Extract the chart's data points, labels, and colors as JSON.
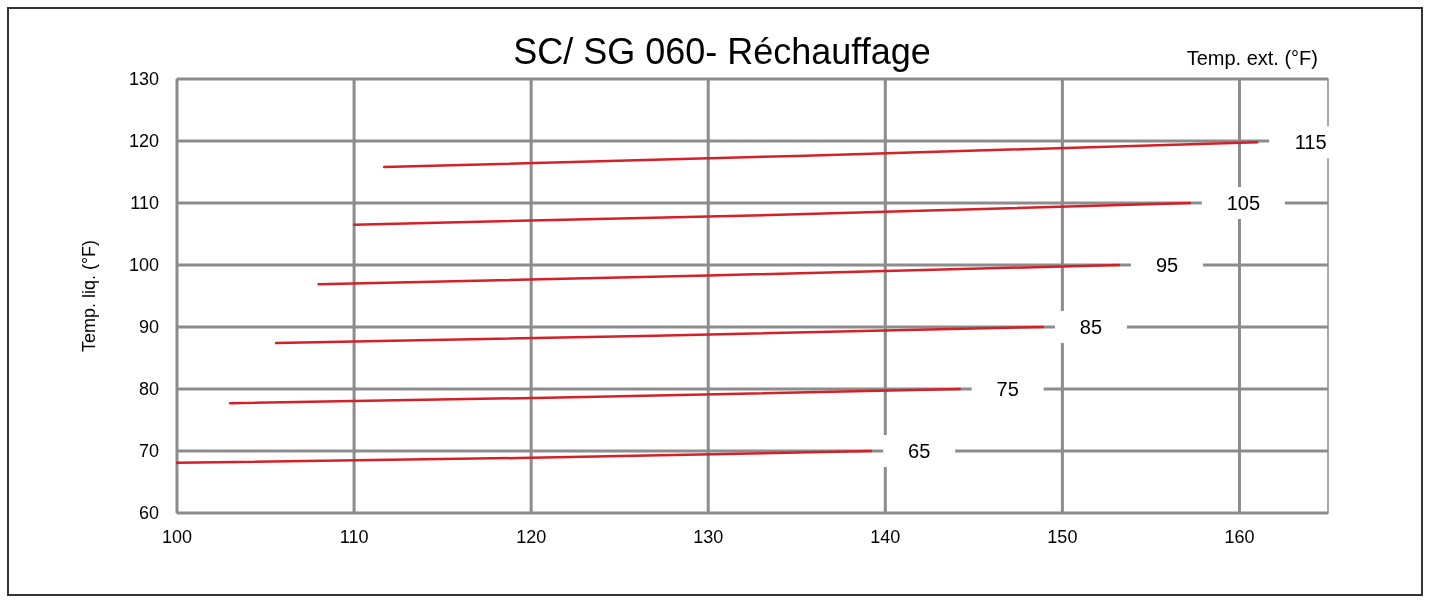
{
  "chart_data": {
    "type": "line",
    "title": "SC/ SG 060- Réchauffage",
    "ylabel": "Temp. liq. (°F)",
    "legend_title": "Temp. ext. (°F)",
    "xlim": [
      100,
      165
    ],
    "ylim": [
      60,
      130
    ],
    "xticks": [
      100,
      110,
      120,
      130,
      140,
      150,
      160
    ],
    "yticks": [
      60,
      70,
      80,
      90,
      100,
      110,
      120,
      130
    ],
    "grid": true,
    "marker": "none",
    "line_style": "solid",
    "series": [
      {
        "name": "115",
        "color": "#d42027",
        "x": [
          111.7,
          135,
          161
        ],
        "values": [
          115.8,
          117.6,
          119.8
        ]
      },
      {
        "name": "105",
        "color": "#d42027",
        "x": [
          110,
          134,
          157.2
        ],
        "values": [
          106.5,
          108.1,
          110
        ]
      },
      {
        "name": "95",
        "color": "#d42027",
        "x": [
          108,
          130,
          153.2
        ],
        "values": [
          96.9,
          98.3,
          100
        ]
      },
      {
        "name": "85",
        "color": "#d42027",
        "x": [
          105.6,
          127,
          148.9
        ],
        "values": [
          87.4,
          88.6,
          90
        ]
      },
      {
        "name": "75",
        "color": "#d42027",
        "x": [
          103,
          123,
          144.2
        ],
        "values": [
          77.7,
          78.7,
          80
        ]
      },
      {
        "name": "65",
        "color": "#d42027",
        "x": [
          100,
          120,
          139.2
        ],
        "values": [
          68.1,
          68.9,
          70
        ]
      }
    ]
  }
}
